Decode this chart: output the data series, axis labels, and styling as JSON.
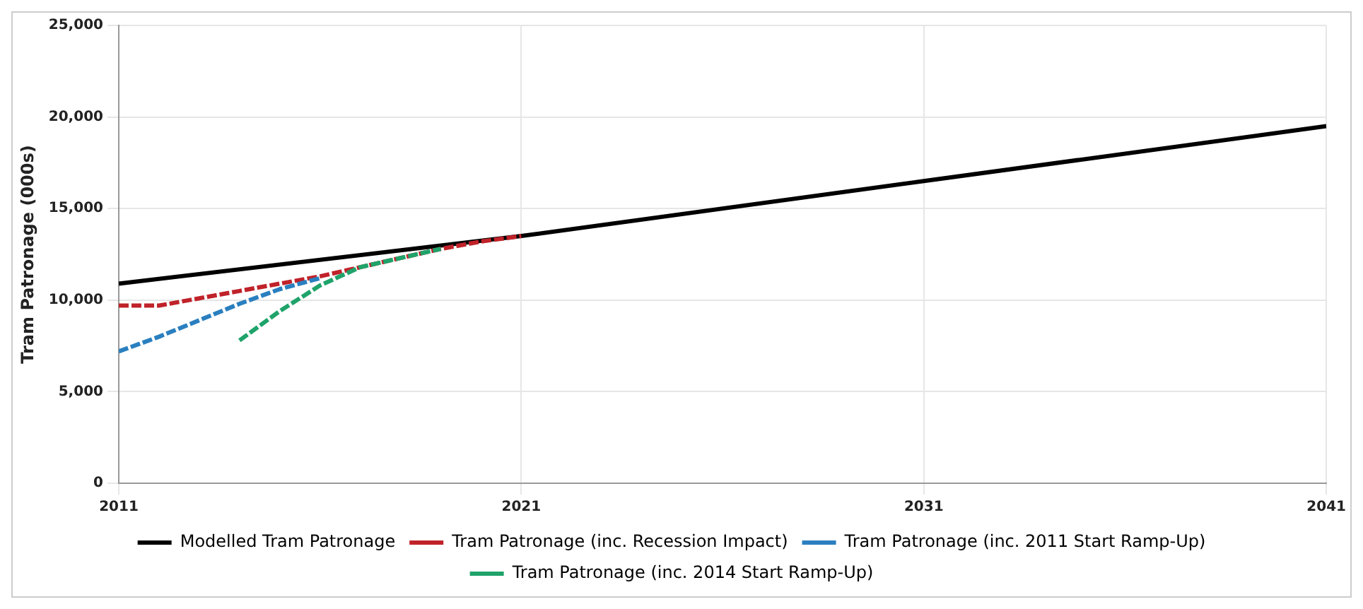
{
  "chart_data": {
    "type": "line",
    "ylabel": "Tram Patronage (000s)",
    "xlim": [
      2011,
      2041
    ],
    "xticks": [
      2011,
      2021,
      2031,
      2041
    ],
    "ylim": [
      0,
      25000
    ],
    "yticks": [
      {
        "value": 0,
        "label": "0"
      },
      {
        "value": 5000,
        "label": "5,000"
      },
      {
        "value": 10000,
        "label": "10,000"
      },
      {
        "value": 15000,
        "label": "15,000"
      },
      {
        "value": 20000,
        "label": "20,000"
      },
      {
        "value": 25000,
        "label": "25,000"
      }
    ],
    "grid": true,
    "legend": "bottom",
    "marker": "none",
    "series": [
      {
        "name": "Modelled Tram Patronage",
        "color": "#000000",
        "line_style": "solid",
        "x": [
          2011,
          2021,
          2031,
          2041
        ],
        "values": [
          10900,
          13500,
          16500,
          19500
        ]
      },
      {
        "name": "Tram Patronage (inc. Recession Impact)",
        "color": "#c0222a",
        "line_style": "dashed",
        "x": [
          2011,
          2012,
          2013,
          2014,
          2015,
          2016,
          2017,
          2018,
          2019,
          2020,
          2021
        ],
        "values": [
          9700,
          9700,
          10100,
          10500,
          10900,
          11300,
          11800,
          12300,
          12800,
          13200,
          13500
        ]
      },
      {
        "name": "Tram Patronage (inc. 2011 Start Ramp-Up)",
        "color": "#2a7fbf",
        "line_style": "dashed",
        "x": [
          2011,
          2012,
          2013,
          2014,
          2015,
          2016
        ],
        "values": [
          7200,
          8000,
          8900,
          9800,
          10600,
          11200
        ]
      },
      {
        "name": "Tram Patronage (inc. 2014 Start Ramp-Up)",
        "color": "#1fa36a",
        "line_style": "dashed",
        "x": [
          2014,
          2015,
          2016,
          2017,
          2018,
          2019
        ],
        "values": [
          7800,
          9400,
          10800,
          11800,
          12300,
          12800
        ]
      }
    ]
  }
}
